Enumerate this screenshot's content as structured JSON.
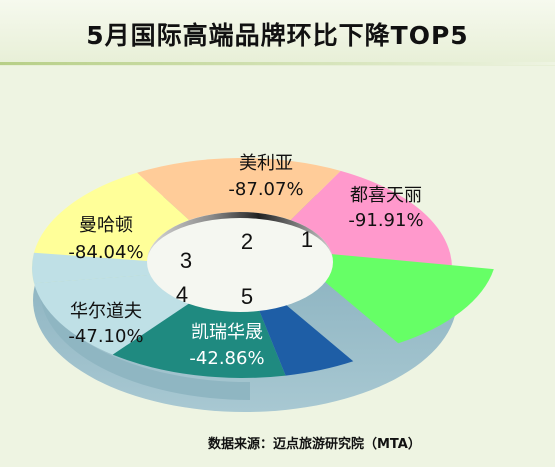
{
  "title": "5月国际高端品牌环比下降TOP5",
  "source": "数据来源：迈点旅游研究院（MTA）",
  "chart_data": {
    "type": "pie",
    "slices": [
      {
        "rank": "1",
        "name": "都喜天丽",
        "value": -91.91,
        "label": "-91.91%",
        "color": "#ff99cc"
      },
      {
        "rank": "2",
        "name": "美利亚",
        "value": -87.07,
        "label": "-87.07%",
        "color": "#ffcc99"
      },
      {
        "rank": "3",
        "name": "曼哈顿",
        "value": -84.04,
        "label": "-84.04%",
        "color": "#ffff99"
      },
      {
        "rank": "4",
        "name": "华尔道夫",
        "value": -47.1,
        "label": "-47.10%",
        "color": "#bfe0e6"
      },
      {
        "rank": "5",
        "name": "凯瑞华晟",
        "value": -42.86,
        "label": "-42.86%",
        "color": "#1f8a80"
      },
      {
        "rank": "",
        "name": "",
        "value": null,
        "label": "",
        "color": "#1e5ea6"
      },
      {
        "rank": "",
        "name": "",
        "value": null,
        "label": "",
        "color": "#66ff66"
      }
    ]
  }
}
